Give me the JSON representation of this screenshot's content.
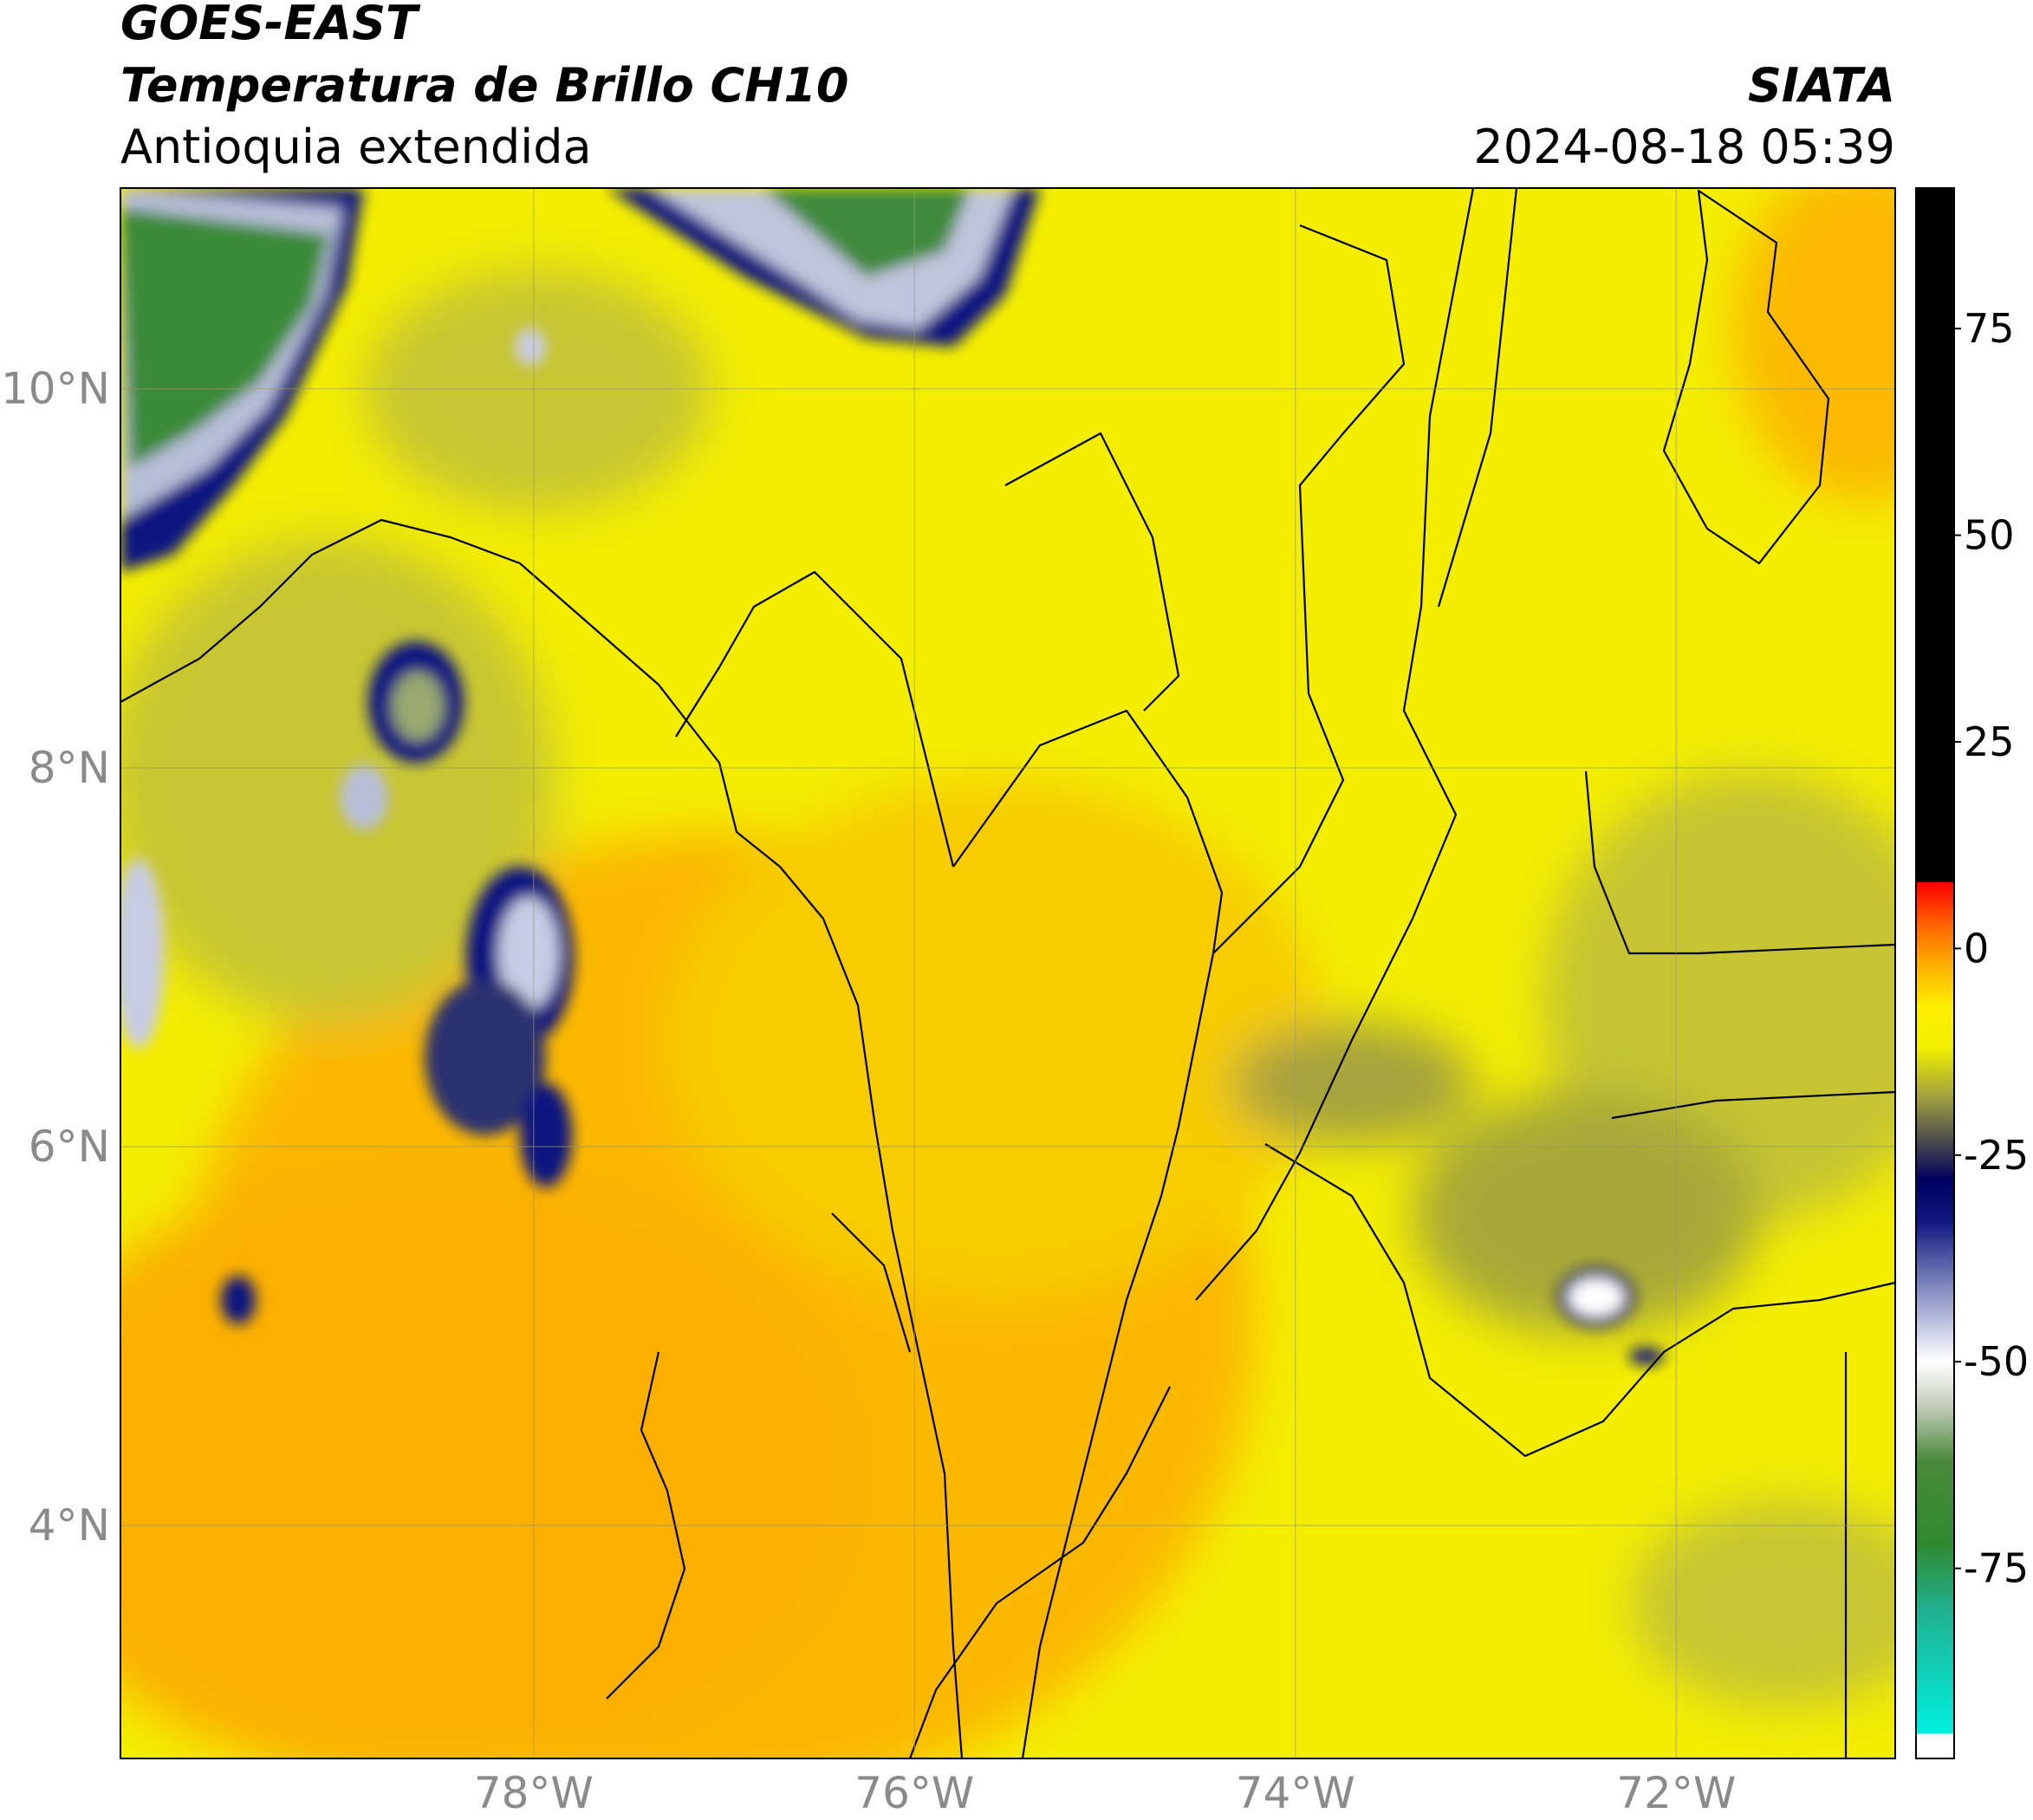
{
  "map": {
    "title": "GOES-EAST",
    "subtitle": "Temperatura de Brillo CH10",
    "region": "Antioquia extendida",
    "source": "SIATA",
    "timestamp": "2024-08-18 05:39",
    "xlim": [
      -80.17,
      -70.85
    ],
    "ylim": [
      2.77,
      11.06
    ],
    "xticks": [
      {
        "value": -78,
        "label": "78°W"
      },
      {
        "value": -76,
        "label": "76°W"
      },
      {
        "value": -74,
        "label": "74°W"
      },
      {
        "value": -72,
        "label": "72°W"
      }
    ],
    "yticks": [
      {
        "value": 10,
        "label": "10°N"
      },
      {
        "value": 8,
        "label": "8°N"
      },
      {
        "value": 6,
        "label": "6°N"
      },
      {
        "value": 4,
        "label": "4°N"
      }
    ],
    "grid": true,
    "colorbar": {
      "lim": [
        -98,
        92
      ],
      "ticks": [
        75,
        50,
        25,
        0,
        -25,
        -50,
        -75
      ],
      "stops": [
        [
          -98,
          "#ffffff"
        ],
        [
          -95,
          "#ffffff"
        ],
        [
          -95,
          "#00f0e0"
        ],
        [
          -80,
          "#20b090"
        ],
        [
          -72,
          "#2f8a2f"
        ],
        [
          -62,
          "#4a8a3a"
        ],
        [
          -55,
          "#c8d0c0"
        ],
        [
          -50,
          "#ffffff"
        ],
        [
          -42,
          "#9098c8"
        ],
        [
          -33,
          "#101880"
        ],
        [
          -28,
          "#000060"
        ],
        [
          -24,
          "#404050"
        ],
        [
          -18,
          "#a0a040"
        ],
        [
          -12,
          "#f0f000"
        ],
        [
          -7,
          "#ffee00"
        ],
        [
          -2,
          "#ffb000"
        ],
        [
          3,
          "#ff6000"
        ],
        [
          8,
          "#ff0000"
        ],
        [
          8,
          "#000000"
        ],
        [
          92,
          "#000000"
        ]
      ]
    }
  }
}
